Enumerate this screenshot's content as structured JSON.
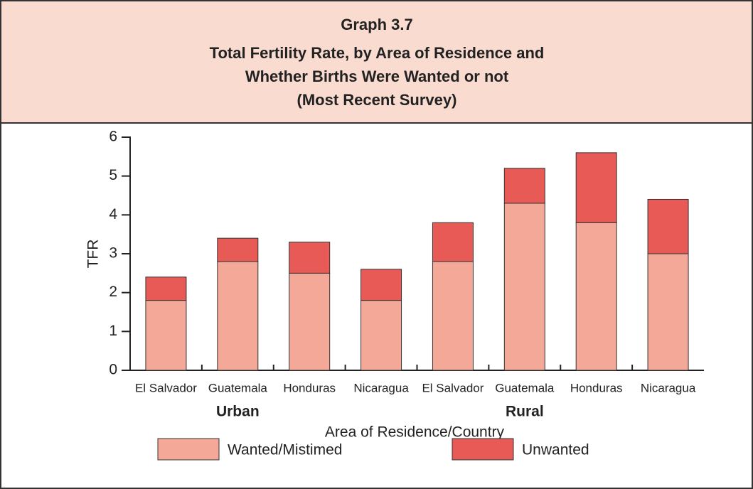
{
  "chart_data": {
    "type": "stacked_bar",
    "title": "Graph 3.7",
    "subtitle": [
      "Total Fertility Rate, by Area of Residence and",
      "Whether Births Were Wanted or not",
      "(Most Recent Survey)"
    ],
    "categories": [
      "El Salvador",
      "Guatemala",
      "Honduras",
      "Nicaragua",
      "El Salvador",
      "Guatemala",
      "Honduras",
      "Nicaragua"
    ],
    "groups": [
      "Urban",
      "Rural"
    ],
    "x_label": "Area of Residence/Country",
    "y_label": "TFR",
    "series": [
      {
        "name": "Wanted/Mistimed",
        "color": "#f4a898",
        "values": [
          1.8,
          2.8,
          2.5,
          1.8,
          2.8,
          4.3,
          3.8,
          3.0
        ]
      },
      {
        "name": "Unwanted",
        "color": "#e85a55",
        "values": [
          0.6,
          0.6,
          0.8,
          0.8,
          1.0,
          0.9,
          1.8,
          1.4
        ]
      }
    ],
    "ylim": [
      0,
      6
    ],
    "yticks": [
      0,
      1,
      2,
      3,
      4,
      5,
      6
    ]
  }
}
